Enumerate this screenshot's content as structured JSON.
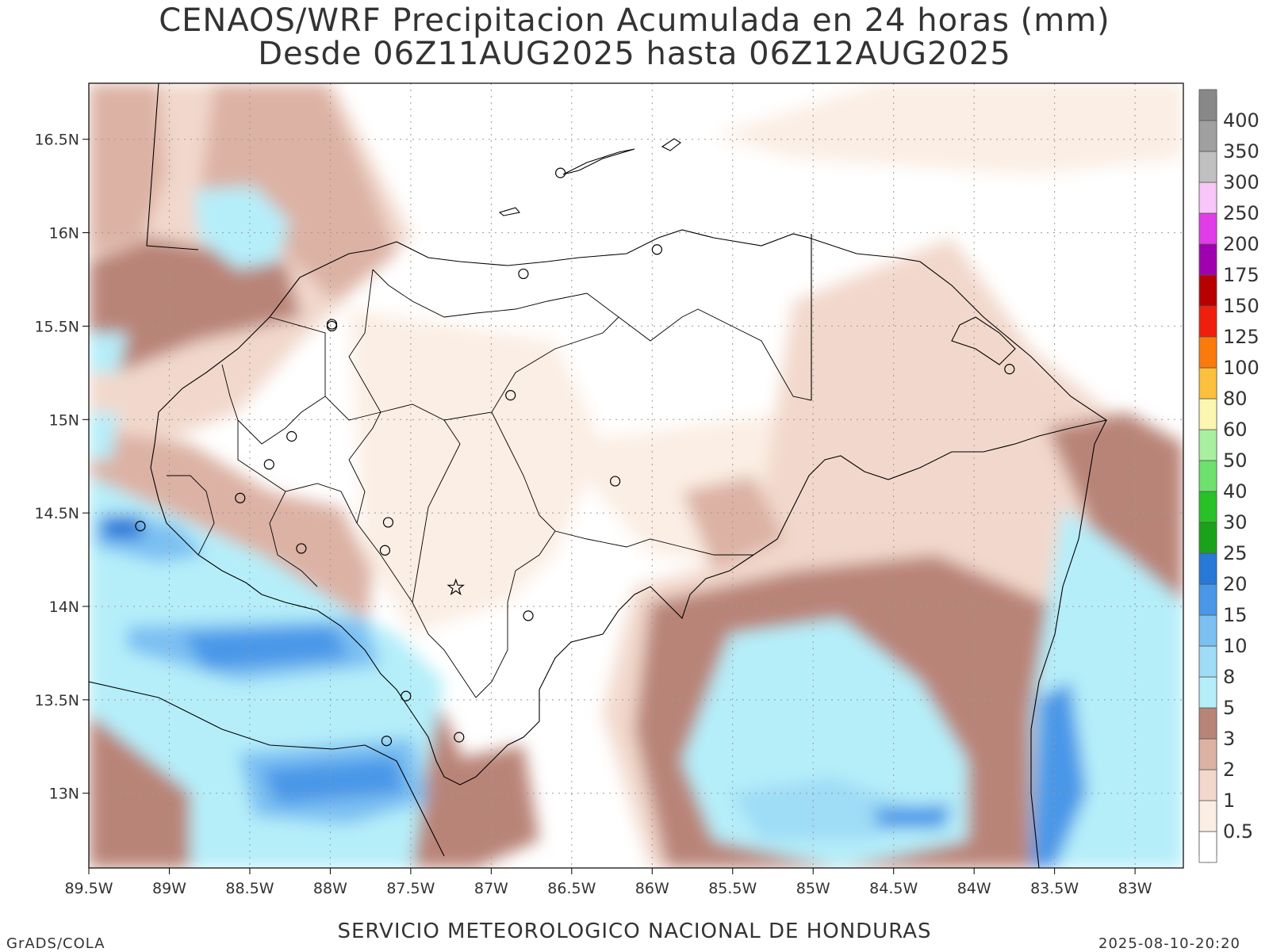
{
  "title": {
    "line1": "CENAOS/WRF Precipitacion Acumulada en 24 horas (mm)",
    "line2": "Desde 06Z11AUG2025 hasta 06Z12AUG2025"
  },
  "footer": {
    "center": "SERVICIO METEOROLOGICO NACIONAL DE HONDURAS",
    "left": "GrADS/COLA",
    "right": "2025-08-10-20:20"
  },
  "map": {
    "lon_range": [
      -89.5,
      -82.7
    ],
    "lat_range": [
      12.6,
      16.8
    ],
    "lon_ticks": [
      "89.5W",
      "89W",
      "88.5W",
      "88W",
      "87.5W",
      "87W",
      "86.5W",
      "86W",
      "85.5W",
      "85W",
      "84.5W",
      "84W",
      "83.5W",
      "83W"
    ],
    "lat_ticks": [
      "16.5N",
      "16N",
      "15.5N",
      "15N",
      "14.5N",
      "14N",
      "13.5N",
      "13N"
    ],
    "capital_marker": "star-icon",
    "city_marker": "circle-icon",
    "grid": "dotted"
  },
  "legend": {
    "labels": [
      "0.5",
      "1",
      "2",
      "3",
      "5",
      "8",
      "10",
      "15",
      "20",
      "25",
      "30",
      "40",
      "50",
      "60",
      "80",
      "100",
      "125",
      "150",
      "175",
      "200",
      "250",
      "300",
      "350",
      "400"
    ],
    "colors": [
      "#ffffff",
      "#fbeee4",
      "#f2d8cc",
      "#dcb2a4",
      "#b98478",
      "#b5eef9",
      "#9fdcf6",
      "#7cc0f2",
      "#4a97e8",
      "#2878d8",
      "#1aa31a",
      "#28c228",
      "#6ee06e",
      "#a8f0a0",
      "#fcf7b0",
      "#fbc03c",
      "#fb7a0c",
      "#f01e0c",
      "#b80000",
      "#a000b0",
      "#e03ce8",
      "#f8c6f8",
      "#c0c0c0",
      "#a0a0a0",
      "#888888"
    ]
  }
}
